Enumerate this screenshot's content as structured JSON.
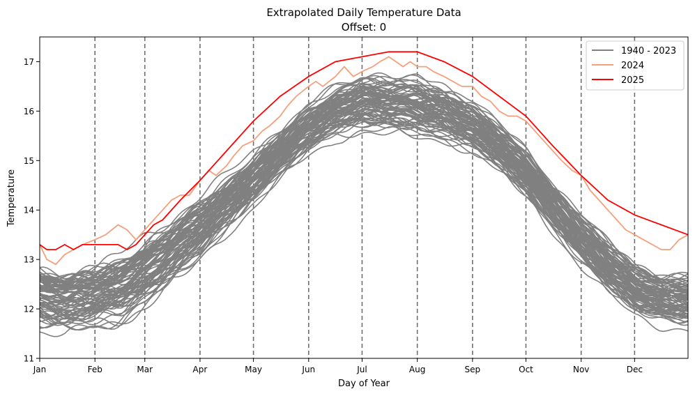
{
  "chart_data": {
    "type": "line",
    "title": "Extrapolated Daily Temperature Data",
    "subtitle": "Offset: 0",
    "xlabel": "Day of Year",
    "ylabel": "Temperature",
    "xlim": [
      1,
      365
    ],
    "ylim": [
      11,
      17.5
    ],
    "yticks": [
      11,
      12,
      13,
      14,
      15,
      16,
      17
    ],
    "xticks": [
      {
        "day": 1,
        "label": "Jan"
      },
      {
        "day": 32,
        "label": "Feb"
      },
      {
        "day": 60,
        "label": "Mar"
      },
      {
        "day": 91,
        "label": "Apr"
      },
      {
        "day": 121,
        "label": "May"
      },
      {
        "day": 152,
        "label": "Jun"
      },
      {
        "day": 182,
        "label": "Jul"
      },
      {
        "day": 213,
        "label": "Aug"
      },
      {
        "day": 244,
        "label": "Sep"
      },
      {
        "day": 274,
        "label": "Oct"
      },
      {
        "day": 305,
        "label": "Nov"
      },
      {
        "day": 335,
        "label": "Dec"
      }
    ],
    "month_lines": [
      32,
      60,
      91,
      121,
      152,
      182,
      213,
      244,
      274,
      305,
      335
    ],
    "grid": false,
    "legend_position": "top-right",
    "historical": {
      "name": "1940 - 2023",
      "color": "#808080",
      "count": 84,
      "envelope": {
        "x": [
          1,
          15,
          32,
          46,
          60,
          75,
          91,
          106,
          121,
          136,
          152,
          167,
          182,
          197,
          213,
          228,
          244,
          259,
          274,
          289,
          305,
          320,
          335,
          350,
          365
        ],
        "low": [
          11.4,
          11.3,
          11.4,
          11.5,
          11.8,
          12.3,
          12.8,
          13.4,
          13.9,
          14.5,
          15.0,
          15.3,
          15.4,
          15.4,
          15.3,
          15.2,
          15.0,
          14.6,
          14.1,
          13.4,
          12.7,
          12.1,
          11.7,
          11.5,
          11.4
        ],
        "high": [
          13.3,
          13.2,
          13.3,
          13.5,
          13.9,
          14.2,
          14.6,
          15.0,
          15.5,
          15.9,
          16.4,
          16.8,
          17.1,
          17.0,
          17.0,
          16.8,
          16.5,
          16.0,
          15.5,
          14.8,
          14.2,
          13.7,
          13.2,
          13.0,
          13.0
        ]
      }
    },
    "series": [
      {
        "name": "2024",
        "color": "#f4a07a",
        "x": [
          1,
          5,
          10,
          15,
          20,
          25,
          32,
          38,
          45,
          50,
          55,
          60,
          65,
          70,
          75,
          80,
          85,
          91,
          96,
          100,
          106,
          110,
          115,
          121,
          126,
          130,
          136,
          140,
          145,
          152,
          156,
          160,
          167,
          172,
          177,
          182,
          188,
          192,
          197,
          201,
          205,
          209,
          213,
          218,
          222,
          228,
          233,
          238,
          244,
          249,
          254,
          259,
          264,
          269,
          274,
          279,
          284,
          289,
          294,
          300,
          305,
          310,
          315,
          320,
          325,
          330,
          335,
          340,
          345,
          350,
          355,
          360,
          365
        ],
        "y": [
          13.3,
          13.0,
          12.9,
          13.1,
          13.2,
          13.3,
          13.4,
          13.5,
          13.7,
          13.6,
          13.4,
          13.6,
          13.8,
          14.0,
          14.2,
          14.3,
          14.3,
          14.6,
          14.8,
          14.7,
          14.9,
          15.1,
          15.3,
          15.4,
          15.6,
          15.7,
          15.9,
          16.1,
          16.3,
          16.5,
          16.6,
          16.5,
          16.7,
          16.9,
          16.7,
          16.8,
          16.9,
          17.0,
          17.1,
          17.0,
          16.9,
          17.0,
          16.9,
          16.9,
          16.8,
          16.7,
          16.6,
          16.5,
          16.5,
          16.3,
          16.2,
          16.0,
          15.9,
          15.9,
          15.8,
          15.6,
          15.4,
          15.2,
          15.0,
          14.8,
          14.7,
          14.4,
          14.2,
          14.0,
          13.8,
          13.6,
          13.5,
          13.4,
          13.3,
          13.2,
          13.2,
          13.4,
          13.5
        ]
      },
      {
        "name": "2025",
        "color": "#ff0000",
        "x": [
          1,
          5,
          10,
          15,
          20,
          25,
          32,
          38,
          45,
          50,
          55,
          60,
          65,
          70,
          80,
          91,
          106,
          121,
          136,
          152,
          167,
          182,
          197,
          205,
          213,
          228,
          244,
          259,
          274,
          289,
          305,
          320,
          335,
          350,
          365
        ],
        "y": [
          13.3,
          13.2,
          13.2,
          13.3,
          13.2,
          13.3,
          13.3,
          13.3,
          13.3,
          13.2,
          13.3,
          13.5,
          13.7,
          13.8,
          14.2,
          14.6,
          15.2,
          15.8,
          16.3,
          16.7,
          17.0,
          17.1,
          17.2,
          17.2,
          17.2,
          17.0,
          16.7,
          16.3,
          15.9,
          15.3,
          14.7,
          14.2,
          13.9,
          13.7,
          13.5
        ]
      }
    ]
  }
}
